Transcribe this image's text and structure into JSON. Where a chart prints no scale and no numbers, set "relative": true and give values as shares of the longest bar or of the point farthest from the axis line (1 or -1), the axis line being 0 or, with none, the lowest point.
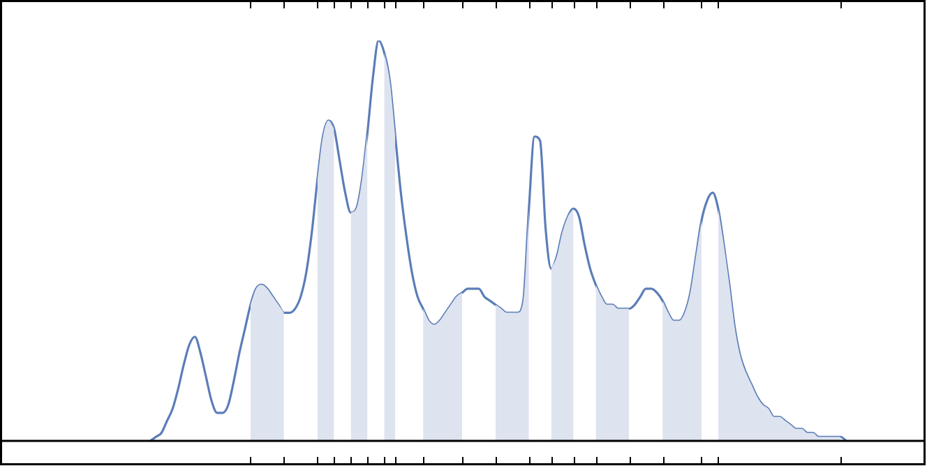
{
  "chart_data": {
    "type": "line",
    "relative": true,
    "legend": false,
    "marker": "none",
    "categories": [
      null,
      null,
      null,
      null,
      null,
      null,
      null,
      null,
      null,
      null,
      null,
      null,
      null,
      null,
      null,
      null,
      null,
      null,
      null,
      null,
      null,
      null,
      null,
      null,
      null,
      null,
      null,
      null,
      null,
      null,
      null,
      null,
      null,
      null,
      null,
      null,
      null,
      null,
      null,
      null,
      null,
      null,
      null,
      null,
      null,
      null,
      null,
      null,
      null,
      null,
      null,
      null,
      null,
      null,
      null,
      null,
      null,
      null,
      null,
      null,
      null,
      null,
      null,
      null,
      null,
      null,
      null,
      null,
      null,
      null,
      null,
      null,
      null,
      null,
      null,
      null,
      null,
      null,
      null,
      null,
      null,
      null,
      null,
      null,
      null,
      null,
      null,
      null,
      null,
      null,
      null,
      null,
      null,
      null,
      null,
      null,
      null,
      null,
      null,
      null,
      null,
      null,
      null,
      null,
      null,
      null,
      null,
      null,
      null,
      null,
      null,
      null,
      null,
      null,
      null,
      null,
      null,
      null,
      null,
      null,
      null,
      null,
      null,
      null,
      null,
      null,
      null,
      null,
      null,
      null,
      null,
      null,
      null,
      null,
      null,
      null,
      null,
      null,
      null,
      null,
      null,
      null,
      null,
      null,
      null,
      null,
      null,
      null,
      null,
      null,
      null,
      null,
      null,
      null,
      null,
      null,
      null,
      null,
      null,
      null,
      null,
      null,
      null,
      null,
      null,
      null,
      null
    ],
    "series": [
      {
        "type": "area",
        "color": "#dde3ef",
        "values": [
          null,
          null,
          null,
          null,
          null,
          null,
          null,
          null,
          null,
          null,
          null,
          null,
          null,
          null,
          null,
          null,
          null,
          null,
          null,
          null,
          null,
          null,
          null,
          null,
          null,
          null,
          null,
          null,
          null,
          null,
          null,
          null,
          null,
          null,
          null,
          null,
          null,
          null,
          null,
          null,
          null,
          null,
          null,
          null,
          null,
          0.34,
          0.38,
          0.39,
          0.38,
          0.36,
          0.34,
          0.32,
          null,
          null,
          null,
          null,
          null,
          0.65,
          0.76,
          0.8,
          0.78,
          null,
          null,
          0.57,
          0.58,
          0.65,
          0.77,
          null,
          null,
          0.97,
          0.9,
          0.76,
          null,
          null,
          null,
          null,
          0.33,
          0.3,
          0.29,
          0.3,
          0.32,
          0.34,
          0.36,
          0.37,
          null,
          null,
          null,
          null,
          null,
          0.34,
          0.33,
          0.32,
          0.32,
          0.32,
          0.35,
          0.58,
          null,
          null,
          null,
          0.43,
          0.46,
          0.52,
          0.56,
          0.58,
          null,
          null,
          null,
          0.39,
          0.36,
          0.34,
          0.34,
          0.33,
          0.33,
          0.33,
          null,
          null,
          null,
          null,
          null,
          0.35,
          0.32,
          0.3,
          0.3,
          0.32,
          0.37,
          0.46,
          0.55,
          null,
          null,
          0.58,
          0.49,
          0.39,
          0.28,
          0.21,
          0.17,
          0.14,
          0.11,
          0.09,
          0.08,
          0.06,
          0.06,
          0.05,
          0.04,
          0.03,
          0.03,
          0.02,
          0.02,
          0.01,
          0.01,
          0.01,
          0.01,
          0.01,
          null,
          null,
          null,
          null,
          null,
          null,
          null,
          null,
          null,
          null,
          null,
          null,
          null,
          null,
          null
        ]
      },
      {
        "type": "line",
        "color": "#5b7db8",
        "values": [
          null,
          null,
          null,
          null,
          null,
          null,
          null,
          null,
          null,
          null,
          null,
          null,
          null,
          null,
          null,
          null,
          null,
          null,
          null,
          null,
          null,
          null,
          null,
          null,
          null,
          null,
          null,
          0,
          0.01,
          0.02,
          0.05,
          0.08,
          0.13,
          0.19,
          0.24,
          0.26,
          0.22,
          0.16,
          0.1,
          0.07,
          0.07,
          0.09,
          0.15,
          0.22,
          0.28,
          0.34,
          0.38,
          0.39,
          0.38,
          0.36,
          0.34,
          0.32,
          0.32,
          0.33,
          0.36,
          0.42,
          0.52,
          0.65,
          0.76,
          0.8,
          0.78,
          0.7,
          0.62,
          0.57,
          0.58,
          0.65,
          0.77,
          0.91,
          1,
          0.97,
          0.9,
          0.76,
          0.62,
          0.51,
          0.42,
          0.36,
          0.33,
          0.3,
          0.29,
          0.3,
          0.32,
          0.34,
          0.36,
          0.37,
          0.38,
          0.38,
          0.38,
          0.36,
          0.35,
          0.34,
          0.33,
          0.32,
          0.32,
          0.32,
          0.35,
          0.58,
          0.76,
          0.75,
          0.53,
          0.43,
          0.46,
          0.52,
          0.56,
          0.58,
          0.56,
          0.49,
          0.43,
          0.39,
          0.36,
          0.34,
          0.34,
          0.33,
          0.33,
          0.33,
          0.34,
          0.36,
          0.38,
          0.38,
          0.37,
          0.35,
          0.32,
          0.3,
          0.3,
          0.32,
          0.37,
          0.46,
          0.55,
          0.6,
          0.62,
          0.58,
          0.49,
          0.39,
          0.28,
          0.21,
          0.17,
          0.14,
          0.11,
          0.09,
          0.08,
          0.06,
          0.06,
          0.05,
          0.04,
          0.03,
          0.03,
          0.02,
          0.02,
          0.01,
          0.01,
          0.01,
          0.01,
          0.01,
          0,
          null,
          null,
          null,
          null,
          null,
          null,
          null,
          null,
          null,
          null,
          null,
          null,
          null,
          null
        ]
      }
    ]
  }
}
